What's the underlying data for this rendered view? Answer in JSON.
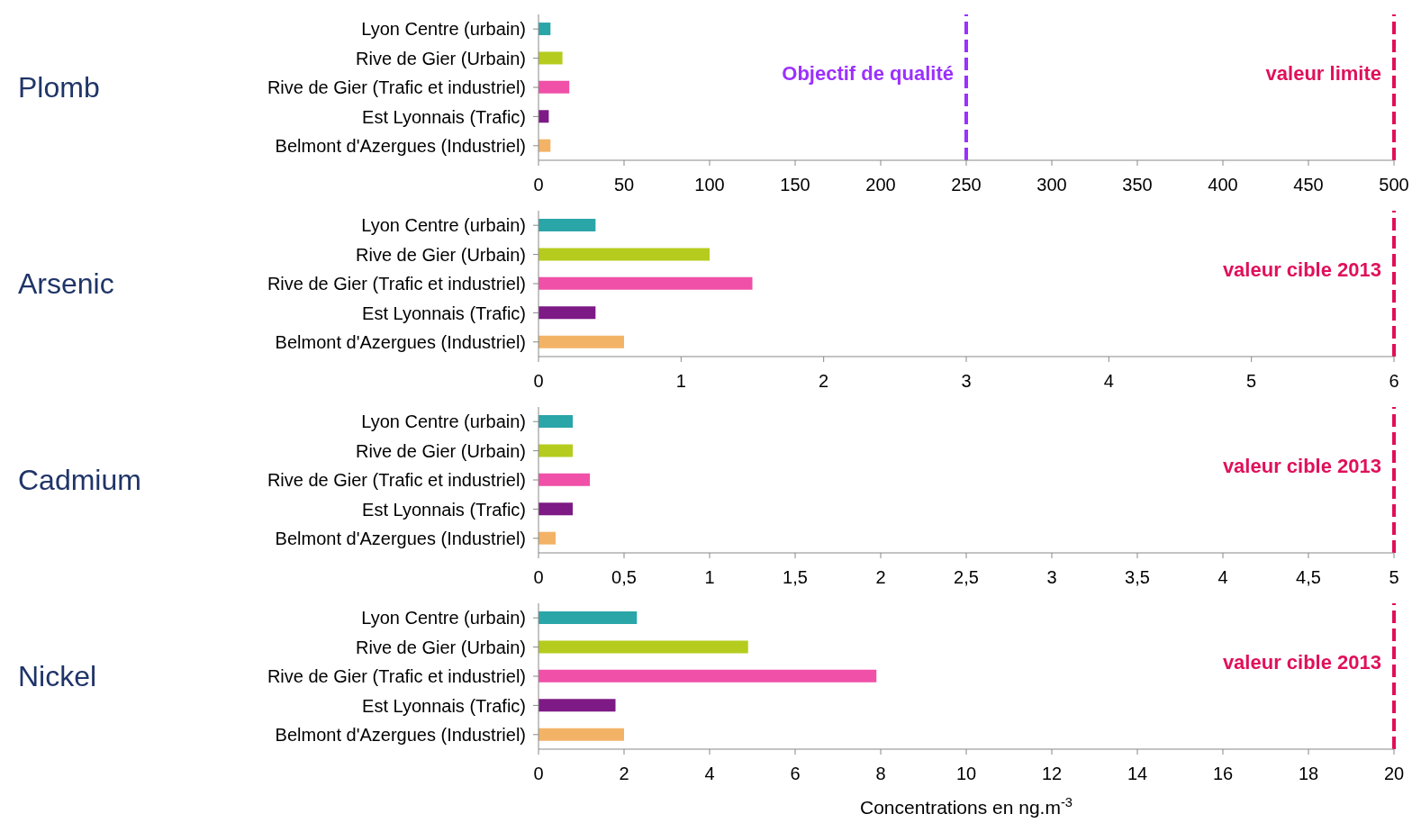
{
  "chart_data": [
    {
      "type": "bar",
      "orientation": "horizontal",
      "title": "Plomb",
      "categories": [
        "Lyon Centre (urbain)",
        "Rive de Gier (Urbain)",
        "Rive de Gier (Trafic et industriel)",
        "Est Lyonnais (Trafic)",
        "Belmont d'Azergues (Industriel)"
      ],
      "values": [
        7,
        14,
        18,
        6,
        7
      ],
      "colors": [
        "#2aa5a8",
        "#b5cc1e",
        "#f050a8",
        "#7d1a85",
        "#f3b366"
      ],
      "xlim": [
        0,
        500
      ],
      "xticks": [
        0,
        50,
        100,
        150,
        200,
        250,
        300,
        350,
        400,
        450,
        500
      ],
      "ref_lines": [
        {
          "axis": "x",
          "value": 250,
          "label": "Objectif de qualité",
          "color": "#9b30ff",
          "line_style": "dashed"
        },
        {
          "axis": "x",
          "value": 500,
          "label": "valeur limite",
          "color": "#e0105a",
          "line_style": "dashed"
        }
      ]
    },
    {
      "type": "bar",
      "orientation": "horizontal",
      "title": "Arsenic",
      "categories": [
        "Lyon Centre (urbain)",
        "Rive de Gier (Urbain)",
        "Rive de Gier (Trafic et industriel)",
        "Est Lyonnais (Trafic)",
        "Belmont d'Azergues (Industriel)"
      ],
      "values": [
        0.4,
        1.2,
        1.5,
        0.4,
        0.6
      ],
      "colors": [
        "#2aa5a8",
        "#b5cc1e",
        "#f050a8",
        "#7d1a85",
        "#f3b366"
      ],
      "xlim": [
        0,
        6
      ],
      "xticks": [
        0,
        1,
        2,
        3,
        4,
        5,
        6
      ],
      "ref_lines": [
        {
          "axis": "x",
          "value": 6,
          "label": "valeur cible 2013",
          "color": "#e0105a",
          "line_style": "dashed"
        }
      ]
    },
    {
      "type": "bar",
      "orientation": "horizontal",
      "title": "Cadmium",
      "categories": [
        "Lyon Centre (urbain)",
        "Rive de Gier (Urbain)",
        "Rive de Gier (Trafic et industriel)",
        "Est Lyonnais (Trafic)",
        "Belmont d'Azergues (Industriel)"
      ],
      "values": [
        0.2,
        0.2,
        0.3,
        0.2,
        0.1
      ],
      "colors": [
        "#2aa5a8",
        "#b5cc1e",
        "#f050a8",
        "#7d1a85",
        "#f3b366"
      ],
      "xlim": [
        0,
        5
      ],
      "xticks": [
        0,
        {
          "value": 0.5,
          "label": "0,5"
        },
        1,
        {
          "value": 1.5,
          "label": "1,5"
        },
        2,
        {
          "value": 2.5,
          "label": "2,5"
        },
        3,
        {
          "value": 3.5,
          "label": "3,5"
        },
        4,
        {
          "value": 4.5,
          "label": "4,5"
        },
        5
      ],
      "ref_lines": [
        {
          "axis": "x",
          "value": 5,
          "label": "valeur cible 2013",
          "color": "#e0105a",
          "line_style": "dashed"
        }
      ]
    },
    {
      "type": "bar",
      "orientation": "horizontal",
      "title": "Nickel",
      "xlabel": "Concentrations en ng.m$^{-3}$",
      "categories": [
        "Lyon Centre (urbain)",
        "Rive de Gier (Urbain)",
        "Rive de Gier (Trafic et industriel)",
        "Est Lyonnais (Trafic)",
        "Belmont d'Azergues (Industriel)"
      ],
      "values": [
        2.3,
        4.9,
        7.9,
        1.8,
        2.0
      ],
      "colors": [
        "#2aa5a8",
        "#b5cc1e",
        "#f050a8",
        "#7d1a85",
        "#f3b366"
      ],
      "xlim": [
        0,
        20
      ],
      "xticks": [
        0,
        2,
        4,
        6,
        8,
        10,
        12,
        14,
        16,
        18,
        20
      ],
      "ref_lines": [
        {
          "axis": "x",
          "value": 20,
          "label": "valeur cible 2013",
          "color": "#e0105a",
          "line_style": "dashed"
        }
      ]
    }
  ]
}
